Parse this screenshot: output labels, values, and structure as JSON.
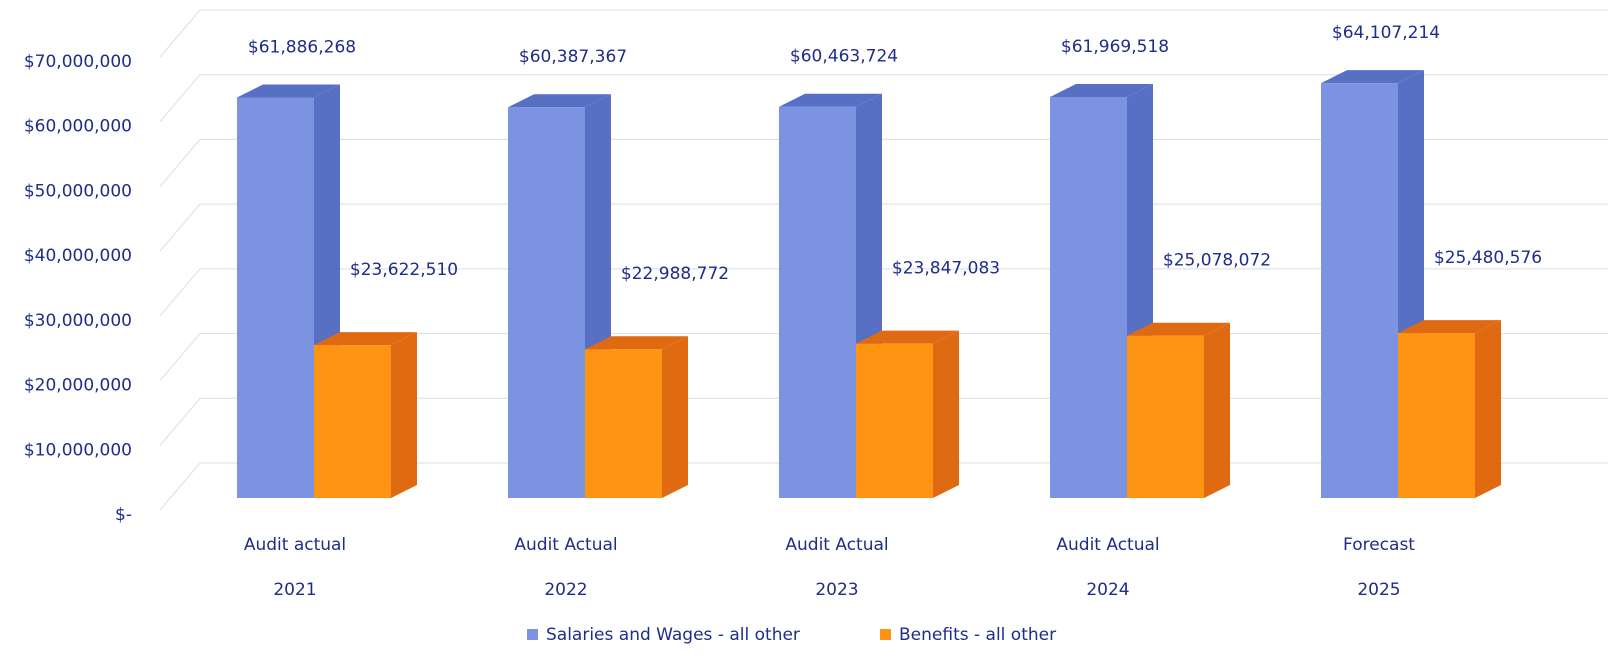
{
  "chart_data": {
    "type": "bar3d",
    "categories": [
      [
        "Audit actual",
        "2021"
      ],
      [
        "Audit Actual",
        "2022"
      ],
      [
        "Audit Actual",
        "2023"
      ],
      [
        "Audit Actual",
        "2024"
      ],
      [
        "Forecast",
        "2025"
      ]
    ],
    "series": [
      {
        "name": "Salaries and Wages - all other",
        "color": "#7b93e0",
        "side_color": "#5870c4",
        "values": [
          61886268,
          60387367,
          60463724,
          61969518,
          64107214
        ],
        "value_labels": [
          "$61,886,268",
          "$60,387,367",
          "$60,463,724",
          "$61,969,518",
          "$64,107,214"
        ]
      },
      {
        "name": "Benefits - all other",
        "color": "#ff9412",
        "side_color": "#e06a12",
        "values": [
          23622510,
          22988772,
          23847083,
          25078072,
          25480576
        ],
        "value_labels": [
          "$23,622,510",
          "$22,988,772",
          "$23,847,083",
          "$25,078,072",
          "$25,480,576"
        ]
      }
    ],
    "ylim": [
      0,
      70000000
    ],
    "yticks": [
      {
        "value": 0,
        "label": "$-"
      },
      {
        "value": 10000000,
        "label": "$10,000,000"
      },
      {
        "value": 20000000,
        "label": "$20,000,000"
      },
      {
        "value": 30000000,
        "label": "$30,000,000"
      },
      {
        "value": 40000000,
        "label": "$40,000,000"
      },
      {
        "value": 50000000,
        "label": "$50,000,000"
      },
      {
        "value": 60000000,
        "label": "$60,000,000"
      },
      {
        "value": 70000000,
        "label": "$70,000,000"
      }
    ],
    "grid": true,
    "legend": "bottom"
  }
}
